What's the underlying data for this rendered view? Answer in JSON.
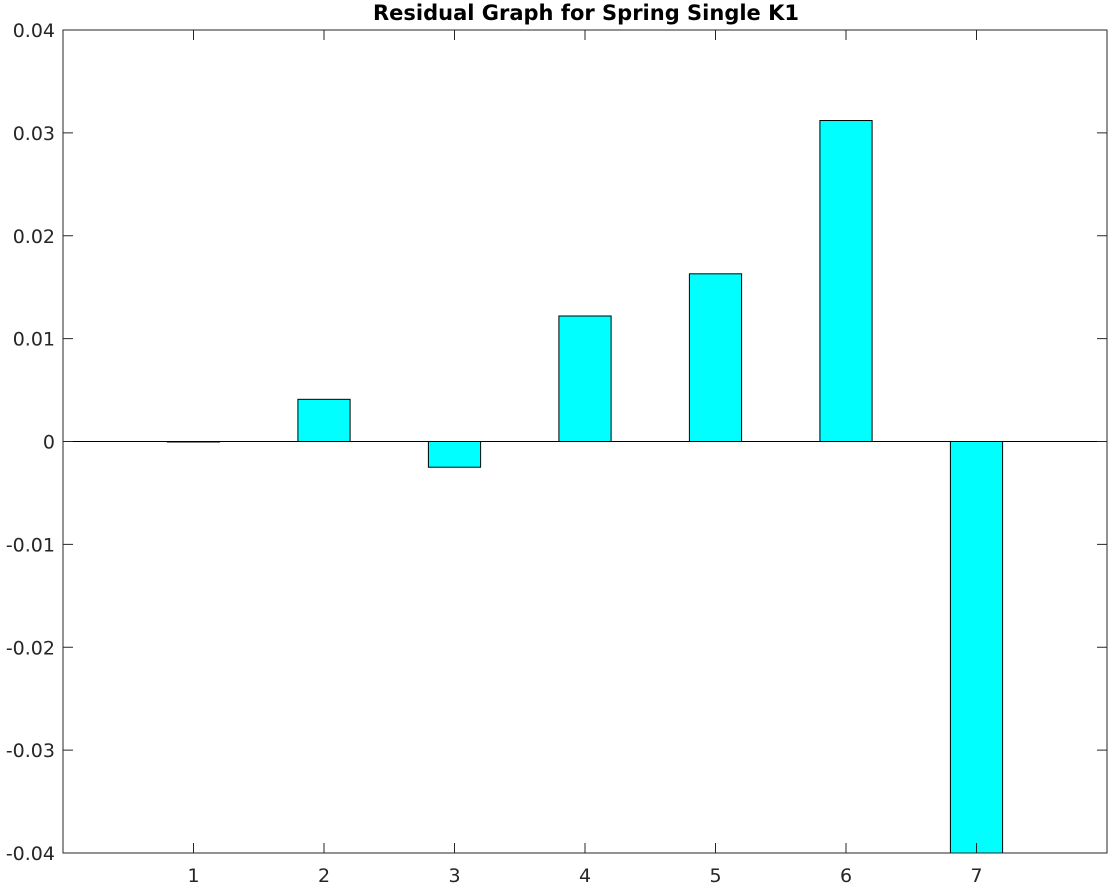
{
  "chart_data": {
    "type": "bar",
    "title": "Residual Graph for Spring Single K1",
    "xlabel": "",
    "ylabel": "",
    "categories": [
      "1",
      "2",
      "3",
      "4",
      "5",
      "6",
      "7"
    ],
    "values": [
      0.0,
      0.0041,
      -0.0025,
      0.0122,
      0.0163,
      0.0312,
      -0.04
    ],
    "xlim": [
      0,
      8
    ],
    "ylim": [
      -0.04,
      0.04
    ],
    "yticks": [
      -0.04,
      -0.03,
      -0.02,
      -0.01,
      0,
      0.01,
      0.02,
      0.03,
      0.04
    ],
    "ytick_labels": [
      "-0.04",
      "-0.03",
      "-0.02",
      "-0.01",
      "0",
      "0.01",
      "0.02",
      "0.03",
      "0.04"
    ],
    "bar_color": "#00ffff",
    "bar_edge_color": "#000000",
    "grid": false,
    "legend": "none"
  }
}
